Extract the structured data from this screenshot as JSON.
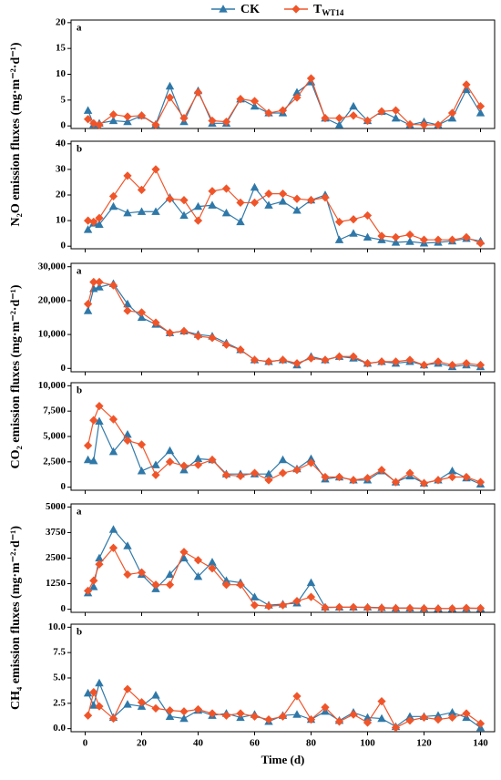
{
  "chart_data": [
    {
      "type": "line",
      "label": "a",
      "ylabel": "N₂O emission fluxes (mg·m⁻²·d⁻¹)",
      "x": [
        1,
        3,
        5,
        10,
        15,
        20,
        25,
        30,
        35,
        40,
        45,
        50,
        55,
        60,
        65,
        70,
        75,
        80,
        85,
        90,
        95,
        100,
        105,
        110,
        115,
        120,
        125,
        130,
        135,
        140
      ],
      "xlim": [
        -5,
        145
      ],
      "ylim": [
        -0.5,
        20.5
      ],
      "yticks": [
        0,
        5,
        10,
        15,
        20
      ],
      "series": [
        {
          "name": "CK",
          "color": "#2f78a8",
          "marker": "triangle",
          "values": [
            3,
            0.3,
            0.5,
            1,
            0.8,
            2,
            0.3,
            7.7,
            0.8,
            6.8,
            0.5,
            0.5,
            5.2,
            3.8,
            2.5,
            2.5,
            6.5,
            8.5,
            1.5,
            0.2,
            3.8,
            1,
            2.8,
            1.5,
            0.2,
            0.8,
            0.2,
            1.5,
            7,
            2.5
          ]
        },
        {
          "name": "TWT14",
          "color": "#f0552a",
          "marker": "diamond",
          "values": [
            1.3,
            0.5,
            0.2,
            2.2,
            1.8,
            2,
            0.2,
            5.5,
            1.5,
            6.5,
            1,
            0.8,
            5.2,
            4.8,
            2.5,
            3,
            5.5,
            9.2,
            1.5,
            1.5,
            2,
            1,
            2.8,
            3,
            0.3,
            0.2,
            0.2,
            2.5,
            8,
            3.8
          ]
        }
      ]
    },
    {
      "type": "line",
      "label": "b",
      "x": [
        1,
        3,
        5,
        10,
        15,
        20,
        25,
        30,
        35,
        40,
        45,
        50,
        55,
        60,
        65,
        70,
        75,
        80,
        85,
        90,
        95,
        100,
        105,
        110,
        115,
        120,
        125,
        130,
        135,
        140
      ],
      "xlim": [
        -5,
        145
      ],
      "ylim": [
        -1,
        41
      ],
      "yticks": [
        0,
        10,
        20,
        30,
        40
      ],
      "series": [
        {
          "color": "#2f78a8",
          "marker": "triangle",
          "values": [
            6.5,
            9,
            8.5,
            15.5,
            13,
            13.5,
            13.5,
            19,
            12,
            15.5,
            16,
            13,
            9.5,
            23,
            16,
            17.5,
            14,
            18,
            20,
            2.5,
            5,
            3.5,
            2.5,
            1.5,
            1.8,
            1.2,
            1.5,
            2,
            3,
            2
          ]
        },
        {
          "color": "#f0552a",
          "marker": "diamond",
          "values": [
            10,
            9.5,
            11,
            19.5,
            27.5,
            22,
            30,
            18.5,
            18,
            10,
            21.5,
            22.5,
            17,
            17,
            20.5,
            20.5,
            18.5,
            18,
            19,
            9.5,
            10.5,
            12,
            4,
            3.5,
            4.5,
            2.5,
            2.5,
            2.5,
            3.5,
            1.2
          ]
        }
      ]
    },
    {
      "type": "line",
      "label": "a",
      "ylabel": "CO₂ emission fluxes (mg·m⁻²·d⁻¹)",
      "x": [
        1,
        3,
        5,
        10,
        15,
        20,
        25,
        30,
        35,
        40,
        45,
        50,
        55,
        60,
        65,
        70,
        75,
        80,
        85,
        90,
        95,
        100,
        105,
        110,
        115,
        120,
        125,
        130,
        135,
        140
      ],
      "xlim": [
        -5,
        145
      ],
      "ylim": [
        -1000,
        31000
      ],
      "yticks": [
        0,
        {
          "value": 10000,
          "label": "10,000"
        },
        {
          "value": 20000,
          "label": "20,000"
        },
        {
          "value": 30000,
          "label": "30,000"
        }
      ],
      "series": [
        {
          "color": "#2f78a8",
          "marker": "triangle",
          "values": [
            17000,
            23500,
            24000,
            25000,
            19000,
            15000,
            13000,
            10500,
            11000,
            10000,
            9500,
            7500,
            5500,
            2500,
            2000,
            2500,
            1000,
            3500,
            2500,
            3500,
            3000,
            1500,
            2000,
            1500,
            2000,
            1000,
            1500,
            500,
            1000,
            500
          ]
        },
        {
          "color": "#f0552a",
          "marker": "diamond",
          "values": [
            19000,
            25500,
            25500,
            24500,
            17000,
            16500,
            13500,
            10500,
            11000,
            9500,
            9000,
            7000,
            5500,
            2500,
            2000,
            2500,
            1500,
            3000,
            2500,
            3500,
            3500,
            1500,
            2000,
            2000,
            2500,
            1000,
            2000,
            1000,
            1500,
            1000
          ]
        }
      ]
    },
    {
      "type": "line",
      "label": "b",
      "x": [
        1,
        3,
        5,
        10,
        15,
        20,
        25,
        30,
        35,
        40,
        45,
        50,
        55,
        60,
        65,
        70,
        75,
        80,
        85,
        90,
        95,
        100,
        105,
        110,
        115,
        120,
        125,
        130,
        135,
        140
      ],
      "xlim": [
        -5,
        145
      ],
      "ylim": [
        -300,
        10300
      ],
      "yticks": [
        0,
        {
          "value": 2500,
          "label": "2,500"
        },
        {
          "value": 5000,
          "label": "5,000"
        },
        {
          "value": 7500,
          "label": "7,500"
        },
        {
          "value": 10000,
          "label": "10,000"
        }
      ],
      "series": [
        {
          "color": "#2f78a8",
          "marker": "triangle",
          "values": [
            2700,
            2600,
            6500,
            3500,
            5200,
            1600,
            2200,
            3600,
            1700,
            2800,
            2700,
            1300,
            1300,
            1300,
            1300,
            2700,
            1800,
            2800,
            800,
            1000,
            700,
            700,
            1600,
            500,
            1100,
            400,
            700,
            1600,
            900,
            300
          ]
        },
        {
          "color": "#f0552a",
          "marker": "diamond",
          "values": [
            4100,
            6600,
            8000,
            6700,
            4600,
            4200,
            1200,
            2500,
            2100,
            2200,
            2700,
            1200,
            1100,
            1400,
            700,
            1400,
            1700,
            2400,
            1000,
            1000,
            700,
            900,
            1700,
            500,
            1400,
            400,
            700,
            1000,
            1000,
            500
          ]
        }
      ]
    },
    {
      "type": "line",
      "label": "a",
      "ylabel": "CH₄ emission fluxes (mg·m⁻²·d⁻¹)",
      "x": [
        1,
        3,
        5,
        10,
        15,
        20,
        25,
        30,
        35,
        40,
        45,
        50,
        55,
        60,
        65,
        70,
        75,
        80,
        85,
        90,
        95,
        100,
        105,
        110,
        115,
        120,
        125,
        130,
        135,
        140
      ],
      "xlim": [
        -5,
        145
      ],
      "ylim": [
        -150,
        5150
      ],
      "yticks": [
        0,
        1250,
        2500,
        3750,
        5000
      ],
      "series": [
        {
          "color": "#2f78a8",
          "marker": "triangle",
          "values": [
            800,
            1100,
            2500,
            3900,
            3100,
            1700,
            1000,
            1700,
            2500,
            1600,
            2300,
            1400,
            1300,
            600,
            200,
            250,
            300,
            1300,
            100,
            100,
            100,
            100,
            80,
            60,
            60,
            50,
            40,
            30,
            50,
            40
          ]
        },
        {
          "color": "#f0552a",
          "marker": "diamond",
          "values": [
            900,
            1400,
            2200,
            3000,
            1700,
            1800,
            1200,
            1200,
            2800,
            2400,
            2000,
            1200,
            1200,
            200,
            150,
            200,
            400,
            600,
            80,
            100,
            100,
            80,
            60,
            50,
            50,
            40,
            30,
            40,
            60,
            50
          ]
        }
      ]
    },
    {
      "type": "line",
      "label": "b",
      "xlabel": "Time (d)",
      "x": [
        1,
        3,
        5,
        10,
        15,
        20,
        25,
        30,
        35,
        40,
        45,
        50,
        55,
        60,
        65,
        70,
        75,
        80,
        85,
        90,
        95,
        100,
        105,
        110,
        115,
        120,
        125,
        130,
        135,
        140
      ],
      "xlim": [
        -5,
        145
      ],
      "xticks": [
        0,
        20,
        40,
        60,
        80,
        100,
        120,
        140
      ],
      "ylim": [
        -0.3,
        10.3
      ],
      "yticks": [
        {
          "value": 0,
          "label": "0.0"
        },
        2.5,
        {
          "value": 5,
          "label": "5.0"
        },
        7.5,
        {
          "value": 10,
          "label": "10.0"
        }
      ],
      "series": [
        {
          "color": "#2f78a8",
          "marker": "triangle",
          "values": [
            3.5,
            2.3,
            4.5,
            1.1,
            2.4,
            2.2,
            3.3,
            1.2,
            1,
            1.8,
            1.3,
            1.5,
            1.1,
            1.4,
            0.7,
            1.3,
            1.4,
            0.9,
            1.7,
            0.8,
            1.6,
            1.1,
            1,
            0.2,
            1.2,
            1.2,
            1.3,
            1.6,
            1.1,
            0.1
          ]
        },
        {
          "color": "#f0552a",
          "marker": "diamond",
          "values": [
            1.3,
            3.6,
            2.2,
            1,
            3.9,
            2.6,
            2,
            1.8,
            1.7,
            1.9,
            1.5,
            1.3,
            1.5,
            1.2,
            0.9,
            1.2,
            3.2,
            0.9,
            2.1,
            0.7,
            1.4,
            0.6,
            2.7,
            0.1,
            0.8,
            1.1,
            0.9,
            1.1,
            1.5,
            0.5
          ]
        }
      ]
    }
  ]
}
